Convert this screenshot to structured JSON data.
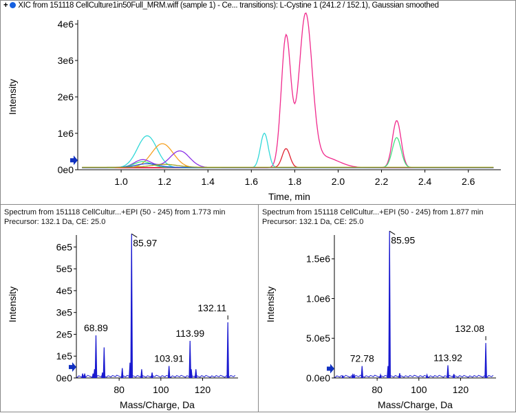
{
  "chart_data": [
    {
      "type": "line",
      "title": "XIC from 151118 CellCulture1in50Full_MRM.wiff (sample 1) - Ce... transitions): L-Cystine 1 (241.2 / 152.1), Gaussian smoothed",
      "xlabel": "Time, min",
      "ylabel": "Intensity",
      "xlim": [
        0.8,
        2.75
      ],
      "ylim": [
        0,
        4200000.0
      ],
      "xticks": [
        "1.0",
        "1.2",
        "1.4",
        "1.6",
        "1.8",
        "2.0",
        "2.2",
        "2.4",
        "2.6"
      ],
      "yticks": [
        "0e0",
        "1e6",
        "2e6",
        "3e6",
        "4e6"
      ],
      "baseline": 50000.0,
      "series": [
        {
          "name": "pink",
          "color": "#f0288c",
          "peaks": [
            [
              1.76,
              3600000.0,
              0.022
            ],
            [
              1.85,
              4100000.0,
              0.03
            ],
            [
              1.93,
              300000.0,
              0.07
            ],
            [
              2.27,
              1300000.0,
              0.02
            ]
          ]
        },
        {
          "name": "cyan",
          "color": "#30d8d8",
          "peaks": [
            [
              1.12,
              880000.0,
              0.045
            ],
            [
              1.66,
              950000.0,
              0.018
            ]
          ]
        },
        {
          "name": "orange",
          "color": "#f5a020",
          "peaks": [
            [
              1.19,
              660000.0,
              0.05
            ]
          ]
        },
        {
          "name": "purple",
          "color": "#8a30e8",
          "peaks": [
            [
              1.27,
              460000.0,
              0.045
            ],
            [
              1.1,
              220000.0,
              0.04
            ]
          ]
        },
        {
          "name": "red",
          "color": "#e02030",
          "peaks": [
            [
              1.76,
              520000.0,
              0.018
            ]
          ]
        },
        {
          "name": "green",
          "color": "#40e080",
          "peaks": [
            [
              2.27,
              820000.0,
              0.02
            ],
            [
              1.1,
              160000.0,
              0.04
            ]
          ]
        },
        {
          "name": "blue",
          "color": "#2050e0",
          "peaks": [
            [
              1.12,
              100000.0,
              0.05
            ]
          ]
        },
        {
          "name": "olive",
          "color": "#a0a020",
          "peaks": [
            [
              1.2,
              80000.0,
              0.06
            ]
          ]
        }
      ]
    },
    {
      "type": "bar",
      "title": "Spectrum from 151118 CellCultur...+EPI (50 - 245) from 1.773 min",
      "subtitle": "Precursor: 132.1 Da, CE: 25.0",
      "xlabel": "Mass/Charge, Da",
      "ylabel": "Intensity",
      "xlim": [
        59.5,
        137
      ],
      "ylim": [
        0,
        680000.0
      ],
      "xticks": [
        80,
        100,
        120
      ],
      "yticks": [
        "0e0",
        "1e5",
        "2e5",
        "3e5",
        "4e5",
        "5e5",
        "6e5"
      ],
      "ytick_values": [
        0,
        100000.0,
        200000.0,
        300000.0,
        400000.0,
        500000.0,
        600000.0
      ],
      "peaks": [
        [
          62.5,
          20000.0
        ],
        [
          63.5,
          20000.0
        ],
        [
          67.5,
          20000.0
        ],
        [
          68.2,
          40000.0
        ],
        [
          68.89,
          195000.0
        ],
        [
          72.0,
          25000.0
        ],
        [
          72.8,
          140000.0
        ],
        [
          81.5,
          45000.0
        ],
        [
          85.2,
          70000.0
        ],
        [
          85.97,
          660000.0
        ],
        [
          90.8,
          40000.0
        ],
        [
          95.8,
          25000.0
        ],
        [
          103.91,
          55000.0
        ],
        [
          113.99,
          170000.0
        ],
        [
          114.6,
          40000.0
        ],
        [
          116.8,
          40000.0
        ],
        [
          132.11,
          255000.0
        ]
      ],
      "labels": [
        {
          "text": "85.97",
          "mz": 85.97
        },
        {
          "text": "68.89",
          "mz": 68.89
        },
        {
          "text": "103.91",
          "mz": 103.91
        },
        {
          "text": "113.99",
          "mz": 113.99
        },
        {
          "text": "132.11",
          "mz": 132.11
        }
      ]
    },
    {
      "type": "bar",
      "title": "Spectrum from 151118 CellCultur...+EPI (50 - 245) from 1.877 min",
      "subtitle": "Precursor: 132.1 Da, CE: 25.0",
      "xlabel": "Mass/Charge, Da",
      "ylabel": "Intensity",
      "xlim": [
        59.5,
        137
      ],
      "ylim": [
        0,
        1870000.0
      ],
      "xticks": [
        80,
        100,
        120
      ],
      "yticks": [
        "0.0e0",
        "5.0e5",
        "1.0e6",
        "1.5e6"
      ],
      "ytick_values": [
        0,
        500000.0,
        1000000.0,
        1500000.0
      ],
      "peaks": [
        [
          63.5,
          25000.0
        ],
        [
          68.2,
          40000.0
        ],
        [
          68.9,
          50000.0
        ],
        [
          72.78,
          150000.0
        ],
        [
          81.6,
          40000.0
        ],
        [
          85.2,
          150000.0
        ],
        [
          85.95,
          1850000.0
        ],
        [
          90.8,
          60000.0
        ],
        [
          103.9,
          40000.0
        ],
        [
          113.92,
          160000.0
        ],
        [
          116.8,
          50000.0
        ],
        [
          132.08,
          440000.0
        ]
      ],
      "labels": [
        {
          "text": "85.95",
          "mz": 85.95
        },
        {
          "text": "72.78",
          "mz": 72.78
        },
        {
          "text": "113.92",
          "mz": 113.92
        },
        {
          "text": "132.08",
          "mz": 132.08
        }
      ]
    }
  ]
}
